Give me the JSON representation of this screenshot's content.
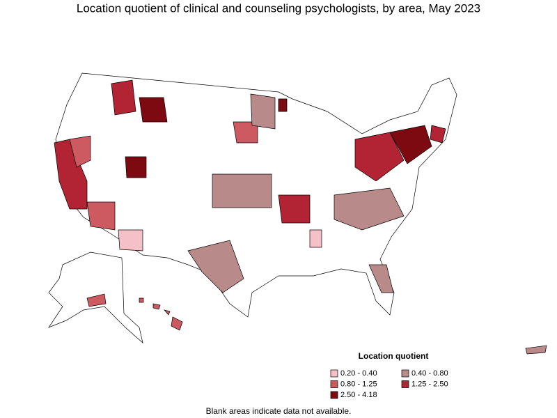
{
  "header": {
    "title": "Location quotient of clinical and counseling psychologists, by area, May 2023"
  },
  "legend": {
    "title": "Location quotient",
    "items": [
      {
        "label": "0.20 - 0.40",
        "color": "#f5c0c8"
      },
      {
        "label": "0.40 - 0.80",
        "color": "#b88a8a"
      },
      {
        "label": "0.80 - 1.25",
        "color": "#cc5a60"
      },
      {
        "label": "1.25 - 2.50",
        "color": "#b22433"
      },
      {
        "label": "2.50 - 4.18",
        "color": "#7d0a10"
      }
    ]
  },
  "footnote": "Blank areas indicate data not available."
}
